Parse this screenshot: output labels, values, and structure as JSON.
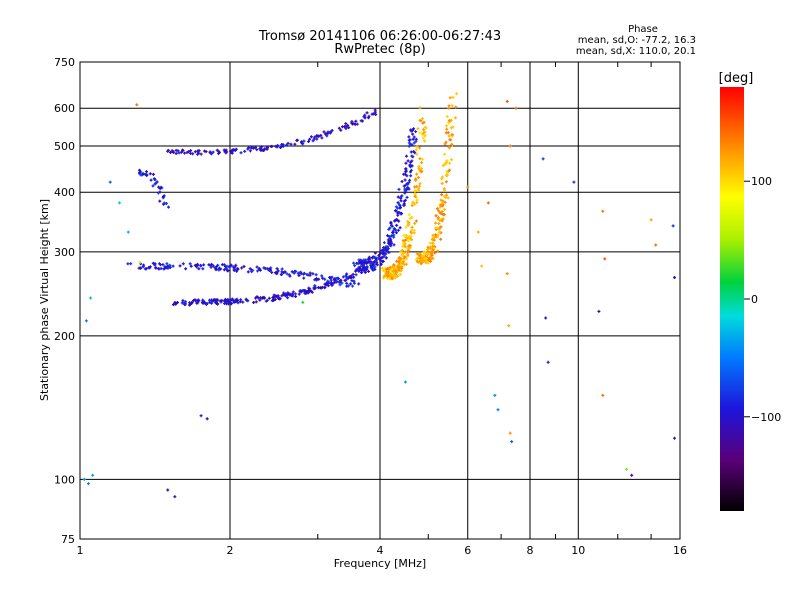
{
  "chart_data": {
    "type": "scatter",
    "title": "Tromsø 20141106 06:26:00-06:27:43",
    "subtitle": "RwPretec (8p)",
    "xlabel": "Frequency [MHz]",
    "ylabel": "Stationary phase Virtual Height [km]",
    "x_scale": "log",
    "y_scale": "log",
    "xlim": [
      1,
      16
    ],
    "ylim": [
      75,
      750
    ],
    "x_ticks": [
      1,
      2,
      4,
      6,
      8,
      10,
      16
    ],
    "x_tick_labels": [
      "1",
      "2",
      "4",
      "6",
      "8",
      "10",
      "16"
    ],
    "y_ticks": [
      75,
      100,
      200,
      300,
      400,
      500,
      600,
      750
    ],
    "y_tick_labels": [
      "75",
      "100",
      "200",
      "300",
      "400",
      "500",
      "600",
      "750"
    ],
    "grid": true,
    "stats": {
      "title": "Phase",
      "line1": "mean, sd,O: -77.2, 16.3",
      "line2": "mean, sd,X: 110.0, 20.1"
    },
    "colorbar": {
      "label": "[deg]",
      "tick_values": [
        100,
        0,
        -100
      ],
      "tick_labels": [
        "100",
        "0",
        "−100"
      ],
      "range": [
        -180,
        180
      ],
      "colormap": "rainbow"
    },
    "traces": [
      {
        "x_range": [
          1.55,
          3.8
        ],
        "h_range": [
          235,
          280
        ],
        "phase": -100,
        "count": 220,
        "jitter": 6
      },
      {
        "x_range": [
          1.25,
          3.6
        ],
        "h_range": [
          280,
          255
        ],
        "phase": -95,
        "count": 180,
        "jitter": 8
      },
      {
        "x_range": [
          3.6,
          4.7
        ],
        "h_range": [
          280,
          560
        ],
        "phase": -95,
        "count": 260,
        "jitter": 18
      },
      {
        "x_range": [
          4.1,
          4.9
        ],
        "h_range": [
          270,
          600
        ],
        "phase": 115,
        "count": 220,
        "jitter": 15
      },
      {
        "x_range": [
          4.8,
          5.6
        ],
        "h_range": [
          290,
          640
        ],
        "phase": 120,
        "count": 200,
        "jitter": 15
      },
      {
        "x_range": [
          1.5,
          4.0
        ],
        "h_range": [
          485,
          600
        ],
        "phase": -105,
        "count": 150,
        "jitter": 10
      },
      {
        "x_range": [
          1.3,
          1.5
        ],
        "h_range": [
          440,
          360
        ],
        "phase": -90,
        "count": 40,
        "jitter": 12
      }
    ],
    "points": [
      {
        "x": 1.02,
        "y": 100,
        "phase": -40
      },
      {
        "x": 1.04,
        "y": 98,
        "phase": -45
      },
      {
        "x": 1.06,
        "y": 102,
        "phase": -35
      },
      {
        "x": 1.03,
        "y": 215,
        "phase": -50
      },
      {
        "x": 1.05,
        "y": 240,
        "phase": -30
      },
      {
        "x": 1.15,
        "y": 420,
        "phase": -60
      },
      {
        "x": 1.2,
        "y": 380,
        "phase": -20
      },
      {
        "x": 1.25,
        "y": 330,
        "phase": -30
      },
      {
        "x": 1.3,
        "y": 610,
        "phase": 140
      },
      {
        "x": 1.32,
        "y": 285,
        "phase": 60
      },
      {
        "x": 1.5,
        "y": 95,
        "phase": -110
      },
      {
        "x": 1.55,
        "y": 92,
        "phase": -110
      },
      {
        "x": 1.75,
        "y": 136,
        "phase": -110
      },
      {
        "x": 1.8,
        "y": 134,
        "phase": -115
      },
      {
        "x": 2.8,
        "y": 235,
        "phase": 20
      },
      {
        "x": 4.5,
        "y": 160,
        "phase": -40
      },
      {
        "x": 6.0,
        "y": 410,
        "phase": 130
      },
      {
        "x": 6.3,
        "y": 330,
        "phase": 120
      },
      {
        "x": 6.4,
        "y": 280,
        "phase": 110
      },
      {
        "x": 6.6,
        "y": 380,
        "phase": 140
      },
      {
        "x": 6.8,
        "y": 150,
        "phase": -40
      },
      {
        "x": 6.9,
        "y": 140,
        "phase": -50
      },
      {
        "x": 7.2,
        "y": 620,
        "phase": 150
      },
      {
        "x": 7.3,
        "y": 500,
        "phase": 140
      },
      {
        "x": 7.2,
        "y": 270,
        "phase": 130
      },
      {
        "x": 7.25,
        "y": 210,
        "phase": 120
      },
      {
        "x": 7.3,
        "y": 125,
        "phase": 130
      },
      {
        "x": 7.35,
        "y": 120,
        "phase": -60
      },
      {
        "x": 7.5,
        "y": 600,
        "phase": 140
      },
      {
        "x": 8.5,
        "y": 470,
        "phase": -80
      },
      {
        "x": 8.6,
        "y": 218,
        "phase": -110
      },
      {
        "x": 8.7,
        "y": 176,
        "phase": -110
      },
      {
        "x": 9.8,
        "y": 420,
        "phase": -80
      },
      {
        "x": 11.2,
        "y": 365,
        "phase": 140
      },
      {
        "x": 11.3,
        "y": 290,
        "phase": 150
      },
      {
        "x": 11.0,
        "y": 225,
        "phase": -110
      },
      {
        "x": 11.2,
        "y": 150,
        "phase": 140
      },
      {
        "x": 12.5,
        "y": 105,
        "phase": 40
      },
      {
        "x": 12.8,
        "y": 102,
        "phase": -110
      },
      {
        "x": 14.0,
        "y": 350,
        "phase": 120
      },
      {
        "x": 14.3,
        "y": 310,
        "phase": 140
      },
      {
        "x": 15.5,
        "y": 340,
        "phase": -80
      },
      {
        "x": 15.6,
        "y": 265,
        "phase": -100
      },
      {
        "x": 15.6,
        "y": 122,
        "phase": -110
      }
    ]
  }
}
